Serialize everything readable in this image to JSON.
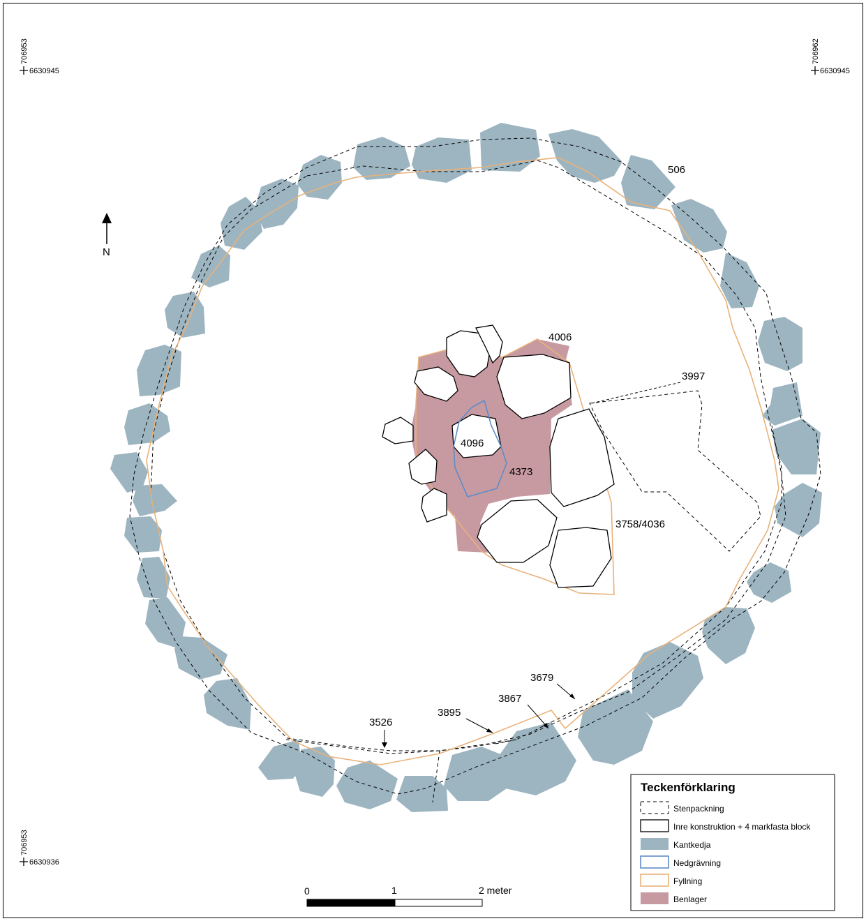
{
  "coordinates": {
    "top_left_e": "706953",
    "top_left_n": "6630945",
    "top_right_e": "706962",
    "top_right_n": "6630945",
    "bottom_left_e": "706953",
    "bottom_left_n": "6630936"
  },
  "north_label": "N",
  "labels": {
    "l506": "506",
    "l4006": "4006",
    "l3997": "3997",
    "l4096": "4096",
    "l4373": "4373",
    "l3758": "3758/4036",
    "l3679": "3679",
    "l3867": "3867",
    "l3895": "3895",
    "l3526": "3526"
  },
  "scale": {
    "t0": "0",
    "t1": "1",
    "t2": "2 meter"
  },
  "legend": {
    "title": "Teckenförklaring",
    "items": [
      {
        "label": "Stenpackning"
      },
      {
        "label": "Inre konstruktion + 4 markfasta block"
      },
      {
        "label": "Kantkedja",
        "color": "#9db5c1"
      },
      {
        "label": "Nedgrävning",
        "color": "#5e8cc7"
      },
      {
        "label": "Fyllning",
        "color": "#e8b27a"
      },
      {
        "label": "Benlager",
        "color": "#c79aa2"
      }
    ]
  }
}
